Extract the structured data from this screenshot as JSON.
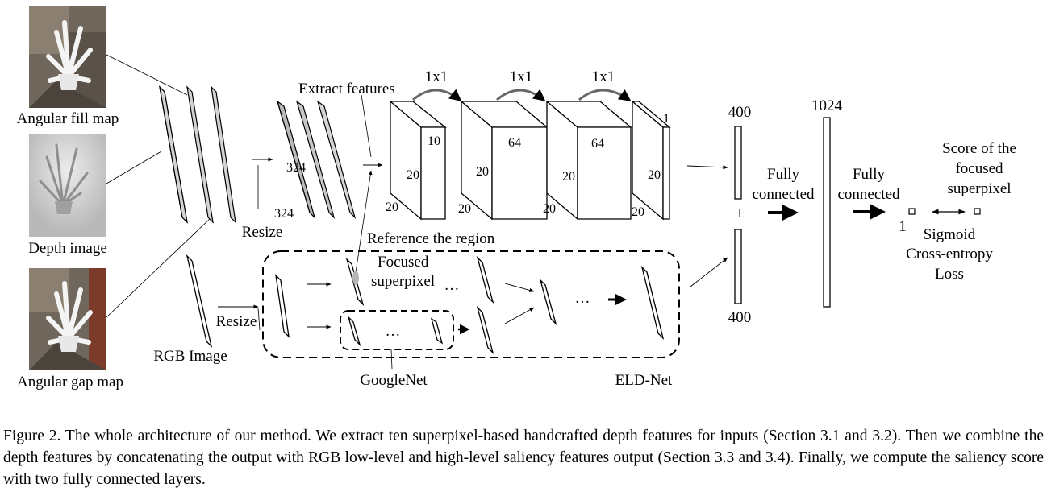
{
  "figure": {
    "inputs": {
      "angular_fill_map": "Angular fill map",
      "depth_image": "Depth image",
      "angular_gap_map": "Angular gap map",
      "rgb_image": "RGB Image"
    },
    "resize_top": "Resize",
    "resize_bottom": "Resize",
    "extract_features": "Extract features",
    "reference_region": "Reference the region",
    "focused_superpixel": [
      "Focused",
      "superpixel"
    ],
    "ellipsis": "…",
    "googlenet": "GoogleNet",
    "eld_net": "ELD-Net",
    "conv_1x1": [
      "1x1",
      "1x1",
      "1x1"
    ],
    "dims": {
      "input_w": "324",
      "input_h": "324",
      "b1_depth": "10",
      "b1_h": "20",
      "b1_w": "20",
      "b2_depth": "64",
      "b2_h": "20",
      "b2_w": "20",
      "b3_depth": "64",
      "b3_h": "20",
      "b3_w": "20",
      "b4_depth": "1",
      "b4_h": "20",
      "b4_w": "20"
    },
    "fc_top": "400",
    "fc_bottom": "400",
    "fc_1024": "1024",
    "plus": "+",
    "fully_connected": [
      "Fully",
      "connected"
    ],
    "output_one": "1",
    "score": [
      "Score of the",
      "focused",
      "superpixel"
    ],
    "loss": [
      "Sigmoid",
      "Cross-entropy",
      "Loss"
    ]
  },
  "caption": "Figure 2. The whole architecture of our method. We extract ten superpixel-based handcrafted depth features for inputs (Section 3.1 and 3.2). Then we combine the depth features by concatenating the output with RGB low-level and high-level saliency features output (Section 3.3 and 3.4). Finally, we compute the saliency score with two fully connected layers."
}
